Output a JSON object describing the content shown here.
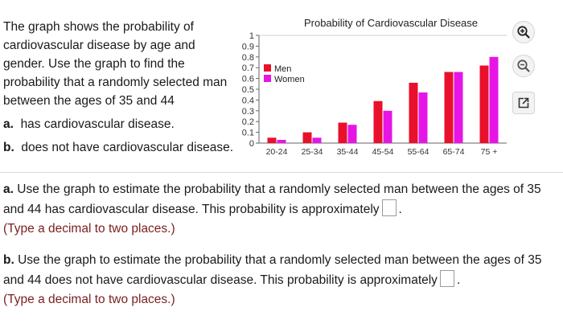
{
  "intro": {
    "text": "The graph shows the probability of cardiovascular disease by age and gender. Use the graph to find the probability that a randomly selected man between the ages of 35 and 44",
    "part_a_letter": "a.",
    "part_a": "has cardiovascular disease.",
    "part_b_letter": "b.",
    "part_b": "does not have cardiovascular disease."
  },
  "tools": {
    "zoom_in": "zoom-in-icon",
    "zoom_out": "zoom-out-icon",
    "open_new": "external-link-icon"
  },
  "colors": {
    "men": "#e8102a",
    "women": "#e615e6"
  },
  "chart_data": {
    "type": "bar",
    "title": "Probability of Cardiovascular Disease",
    "categories": [
      "20-24",
      "25-34",
      "35-44",
      "45-54",
      "55-64",
      "65-74",
      "75 +"
    ],
    "series": [
      {
        "name": "Men",
        "values": [
          0.05,
          0.1,
          0.19,
          0.39,
          0.56,
          0.66,
          0.72
        ]
      },
      {
        "name": "Women",
        "values": [
          0.03,
          0.05,
          0.17,
          0.3,
          0.47,
          0.66,
          0.8
        ]
      }
    ],
    "yticks": [
      "0",
      "0.1",
      "0.2",
      "0.3",
      "0.4",
      "0.5",
      "0.6",
      "0.7",
      "0.8",
      "0.9",
      "1"
    ],
    "ylim": [
      0,
      1
    ],
    "legend": "top-left"
  },
  "questions": {
    "a": {
      "letter": "a.",
      "text_before": "Use the graph to estimate the probability that a randomly selected man between the ages of 35 and 44 has cardiovascular disease. This probability is approximately",
      "text_after": ".",
      "hint": "(Type a decimal to two places.)"
    },
    "b": {
      "letter": "b.",
      "text_before": "Use the graph to estimate the probability that a randomly selected man between the ages of 35 and 44 does not have cardiovascular disease. This probability is approximately",
      "text_after": ".",
      "hint": "(Type a decimal to two places.)"
    }
  }
}
